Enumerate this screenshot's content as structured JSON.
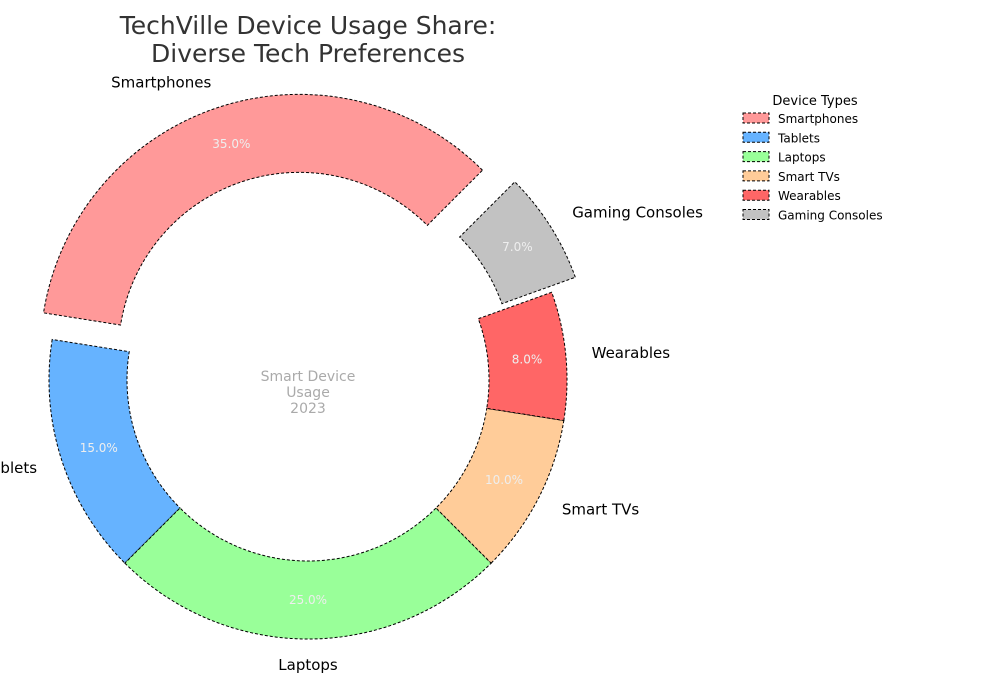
{
  "chart_data": {
    "type": "pie",
    "style": "donut",
    "title_lines": [
      "TechVille Device Usage Share:",
      "Diverse Tech Preferences"
    ],
    "center_text": [
      "Smart Device",
      "Usage",
      "2023"
    ],
    "legend": {
      "title": "Device Types",
      "placement": "top-right",
      "entries": [
        "Smartphones",
        "Tablets",
        "Laptops",
        "Smart TVs",
        "Wearables",
        "Gaming Consoles"
      ]
    },
    "categories": [
      "Smartphones",
      "Tablets",
      "Laptops",
      "Smart TVs",
      "Wearables",
      "Gaming Consoles"
    ],
    "values": [
      35,
      15,
      25,
      10,
      8,
      7
    ],
    "percent_labels": [
      "35.0%",
      "15.0%",
      "25.0%",
      "10.0%",
      "8.0%",
      "7.0%"
    ],
    "exploded": [
      true,
      false,
      false,
      false,
      false,
      true
    ],
    "colors": [
      "#ff9999",
      "#66b3ff",
      "#99ff99",
      "#ffcc99",
      "#ff6666",
      "#c2c2c2"
    ],
    "edge_style": "dashed",
    "edge_color": "#000000"
  }
}
